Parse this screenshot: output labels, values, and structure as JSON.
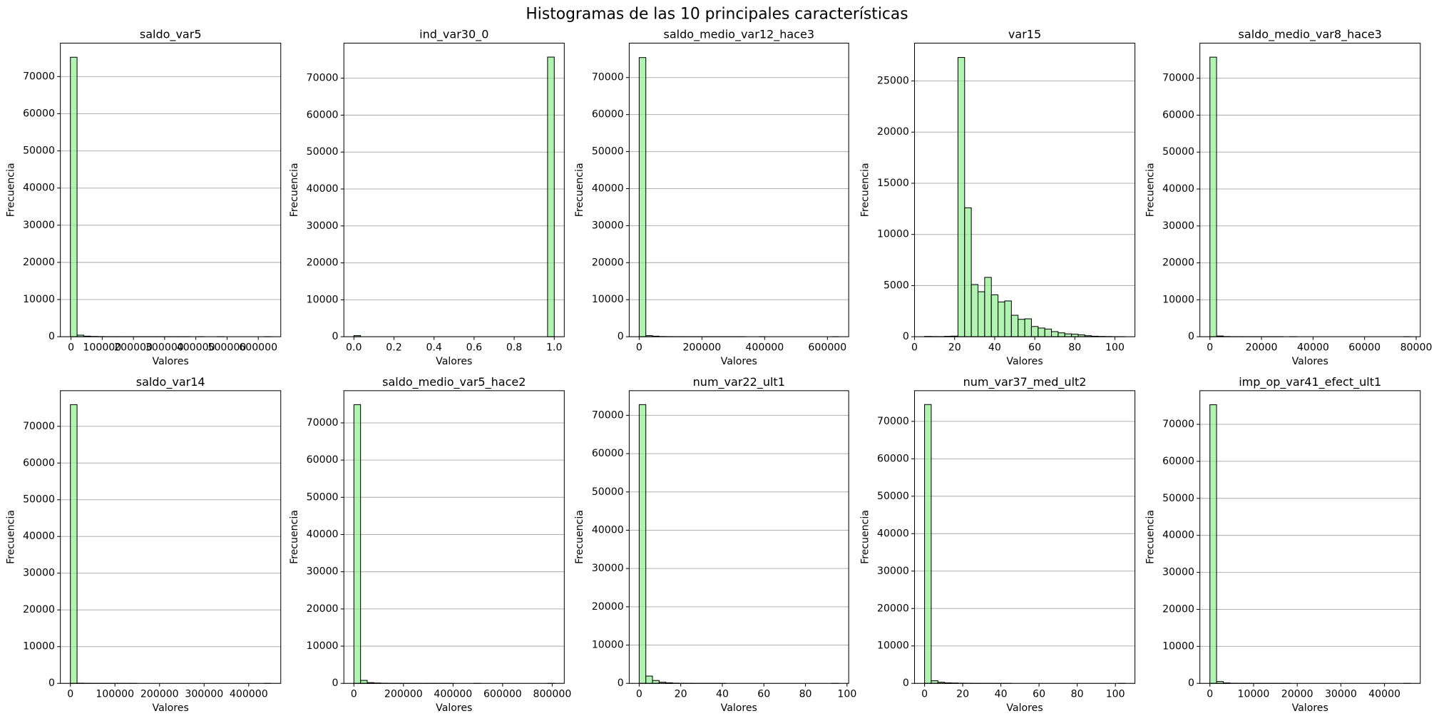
{
  "title": "Histogramas de las 10 principales características",
  "chart_data": [
    {
      "type": "histogram",
      "title": "saldo_var5",
      "xlabel": "Valores",
      "ylabel": "Frecuencia",
      "bins": [
        -2000,
        19400,
        40800,
        62200,
        83600,
        105000,
        126400,
        147800,
        169200,
        190600,
        212000,
        233400,
        254800,
        276200,
        297600,
        319000,
        340400,
        361800,
        383200,
        404600,
        426000,
        447400,
        468800,
        490200,
        511600,
        533000,
        554400,
        575800,
        597200,
        618600,
        640000
      ],
      "values": [
        75200,
        420,
        160,
        80,
        50,
        30,
        20,
        15,
        10,
        8,
        5,
        4,
        3,
        2,
        2,
        1,
        1,
        1,
        0,
        1,
        0,
        0,
        1,
        0,
        0,
        0,
        0,
        0,
        0,
        1
      ],
      "xlim": [
        -34100,
        672100
      ],
      "xticks": [
        0,
        100000,
        200000,
        300000,
        400000,
        500000,
        600000
      ],
      "ylim": [
        0,
        79000
      ],
      "yticks": [
        0,
        10000,
        20000,
        30000,
        40000,
        50000,
        60000,
        70000
      ],
      "color": "#90ee90",
      "alpha": 0.7,
      "edgecolor": "#000000",
      "grid": "y"
    },
    {
      "type": "histogram",
      "title": "ind_var30_0",
      "xlabel": "Valores",
      "ylabel": "Frecuencia",
      "bins": [
        0,
        0.0333,
        0.0667,
        0.1,
        0.1333,
        0.1667,
        0.2,
        0.2333,
        0.2667,
        0.3,
        0.3333,
        0.3667,
        0.4,
        0.4333,
        0.4667,
        0.5,
        0.5333,
        0.5667,
        0.6,
        0.6333,
        0.6667,
        0.7,
        0.7333,
        0.7667,
        0.8,
        0.8333,
        0.8667,
        0.9,
        0.9333,
        0.9667,
        1
      ],
      "values": [
        300,
        0,
        0,
        0,
        0,
        0,
        0,
        0,
        0,
        0,
        0,
        0,
        0,
        0,
        0,
        0,
        0,
        0,
        0,
        0,
        0,
        0,
        0,
        0,
        0,
        0,
        0,
        0,
        0,
        75720
      ],
      "xlim": [
        -0.05,
        1.05
      ],
      "xticks": [
        {
          "value": 0,
          "label": "0.0"
        },
        0.2,
        0.4,
        0.6,
        0.8,
        {
          "value": 1,
          "label": "1.0"
        }
      ],
      "ylim": [
        0,
        79500
      ],
      "yticks": [
        0,
        10000,
        20000,
        30000,
        40000,
        50000,
        60000,
        70000
      ],
      "color": "#90ee90",
      "alpha": 0.7,
      "edgecolor": "#000000",
      "grid": "y"
    },
    {
      "type": "histogram",
      "title": "saldo_medio_var12_hace3",
      "xlabel": "Valores",
      "ylabel": "Frecuencia",
      "bins": [
        0,
        21200,
        42400,
        63600,
        84800,
        106000,
        127200,
        148400,
        169600,
        190800,
        212000,
        233200,
        254400,
        275600,
        296800,
        318000,
        339200,
        360400,
        381600,
        402800,
        424000,
        445200,
        466400,
        487600,
        508800,
        530000,
        551200,
        572400,
        593600,
        614800,
        636000
      ],
      "values": [
        75400,
        300,
        150,
        60,
        40,
        20,
        15,
        10,
        5,
        5,
        3,
        2,
        2,
        1,
        1,
        1,
        0,
        0,
        1,
        0,
        0,
        0,
        0,
        0,
        0,
        0,
        0,
        0,
        0,
        1
      ],
      "xlim": [
        -31800,
        667800
      ],
      "xticks": [
        0,
        200000,
        400000,
        600000
      ],
      "ylim": [
        0,
        79300
      ],
      "yticks": [
        0,
        10000,
        20000,
        30000,
        40000,
        50000,
        60000,
        70000
      ],
      "color": "#90ee90",
      "alpha": 0.7,
      "edgecolor": "#000000",
      "grid": "y"
    },
    {
      "type": "histogram",
      "title": "var15",
      "xlabel": "Valores",
      "ylabel": "Frecuencia",
      "bins": [
        5,
        8.33,
        11.67,
        15,
        18.33,
        21.67,
        25,
        28.33,
        31.67,
        35,
        38.33,
        41.67,
        45,
        48.33,
        51.67,
        55,
        58.33,
        61.67,
        65,
        68.33,
        71.67,
        75,
        78.33,
        81.67,
        85,
        88.33,
        91.67,
        95,
        98.33,
        101.67,
        105
      ],
      "values": [
        30,
        20,
        15,
        40,
        60,
        27300,
        12600,
        5100,
        4400,
        5800,
        4100,
        3400,
        3500,
        2100,
        1700,
        1750,
        1000,
        850,
        750,
        500,
        380,
        280,
        250,
        180,
        100,
        50,
        30,
        20,
        10,
        5
      ],
      "xlim": [
        0,
        110
      ],
      "xticks": [
        0,
        20,
        40,
        60,
        80,
        100
      ],
      "ylim": [
        0,
        28700
      ],
      "yticks": [
        0,
        5000,
        10000,
        15000,
        20000,
        25000
      ],
      "color": "#90ee90",
      "alpha": 0.7,
      "edgecolor": "#000000",
      "grid": "y"
    },
    {
      "type": "histogram",
      "title": "saldo_medio_var8_hace3",
      "xlabel": "Valores",
      "ylabel": "Frecuencia",
      "bins": [
        0,
        2590,
        5180,
        7770,
        10360,
        12950,
        15540,
        18130,
        20720,
        23310,
        25900,
        28490,
        31080,
        33670,
        36260,
        38850,
        41440,
        44030,
        46620,
        49210,
        51800,
        54390,
        56980,
        59570,
        62160,
        64750,
        67340,
        69930,
        72520,
        75110,
        77700
      ],
      "values": [
        75700,
        200,
        60,
        25,
        15,
        8,
        5,
        3,
        2,
        1,
        1,
        0,
        1,
        0,
        0,
        0,
        0,
        0,
        0,
        0,
        0,
        0,
        0,
        0,
        0,
        0,
        0,
        0,
        0,
        1
      ],
      "xlim": [
        -3885,
        81585
      ],
      "xticks": [
        0,
        20000,
        40000,
        60000,
        80000
      ],
      "ylim": [
        0,
        79500
      ],
      "yticks": [
        0,
        10000,
        20000,
        30000,
        40000,
        50000,
        60000,
        70000
      ],
      "color": "#90ee90",
      "alpha": 0.7,
      "edgecolor": "#000000",
      "grid": "y"
    },
    {
      "type": "histogram",
      "title": "saldo_var14",
      "xlabel": "Valores",
      "ylabel": "Frecuencia",
      "bins": [
        0,
        14980,
        29960,
        44940,
        59920,
        74900,
        89880,
        104860,
        119840,
        134820,
        149800,
        164780,
        179760,
        194740,
        209720,
        224700,
        239680,
        254660,
        269640,
        284620,
        299600,
        314580,
        329560,
        344540,
        359520,
        374500,
        389480,
        404460,
        419440,
        434420,
        449400
      ],
      "values": [
        75900,
        60,
        20,
        10,
        8,
        5,
        3,
        2,
        1,
        1,
        0,
        0,
        0,
        0,
        0,
        0,
        0,
        0,
        0,
        0,
        0,
        0,
        0,
        0,
        0,
        0,
        0,
        0,
        0,
        1
      ],
      "xlim": [
        -22470,
        471870
      ],
      "xticks": [
        0,
        100000,
        200000,
        300000,
        400000
      ],
      "ylim": [
        0,
        79700
      ],
      "yticks": [
        0,
        10000,
        20000,
        30000,
        40000,
        50000,
        60000,
        70000
      ],
      "color": "#90ee90",
      "alpha": 0.7,
      "edgecolor": "#000000",
      "grid": "y"
    },
    {
      "type": "histogram",
      "title": "saldo_medio_var5_hace2",
      "xlabel": "Valores",
      "ylabel": "Frecuencia",
      "bins": [
        0,
        26940,
        53880,
        80820,
        107760,
        134700,
        161640,
        188580,
        215520,
        242460,
        269400,
        296340,
        323280,
        350220,
        377160,
        404100,
        431040,
        457980,
        484920,
        511860,
        538800,
        565740,
        592680,
        619620,
        646560,
        673500,
        700440,
        727380,
        754320,
        781260,
        808200
      ],
      "values": [
        74900,
        800,
        200,
        100,
        50,
        30,
        20,
        10,
        5,
        5,
        3,
        2,
        1,
        1,
        1,
        0,
        0,
        0,
        1,
        0,
        0,
        0,
        0,
        0,
        0,
        0,
        0,
        0,
        0,
        1
      ],
      "xlim": [
        -40410,
        848610
      ],
      "xticks": [
        0,
        200000,
        400000,
        600000,
        800000
      ],
      "ylim": [
        0,
        78650
      ],
      "yticks": [
        0,
        10000,
        20000,
        30000,
        40000,
        50000,
        60000,
        70000
      ],
      "color": "#90ee90",
      "alpha": 0.7,
      "edgecolor": "#000000",
      "grid": "y"
    },
    {
      "type": "histogram",
      "title": "num_var22_ult1",
      "xlabel": "Valores",
      "ylabel": "Frecuencia",
      "bins": [
        0,
        3.2,
        6.4,
        9.6,
        12.8,
        16,
        19.2,
        22.4,
        25.6,
        28.8,
        32,
        35.2,
        38.4,
        41.6,
        44.8,
        48,
        51.2,
        54.4,
        57.6,
        60.8,
        64,
        67.2,
        70.4,
        73.6,
        76.8,
        80,
        83.2,
        86.4,
        89.6,
        92.8,
        96
      ],
      "values": [
        72800,
        1900,
        750,
        300,
        150,
        60,
        30,
        15,
        5,
        3,
        2,
        1,
        1,
        0,
        0,
        0,
        0,
        0,
        0,
        0,
        0,
        0,
        0,
        0,
        0,
        0,
        0,
        0,
        0,
        1
      ],
      "xlim": [
        -4.8,
        100.8
      ],
      "xticks": [
        0,
        20,
        40,
        60,
        80,
        100
      ],
      "ylim": [
        0,
        76440
      ],
      "yticks": [
        0,
        10000,
        20000,
        30000,
        40000,
        50000,
        60000,
        70000
      ],
      "color": "#90ee90",
      "alpha": 0.7,
      "edgecolor": "#000000",
      "grid": "y"
    },
    {
      "type": "histogram",
      "title": "num_var37_med_ult2",
      "xlabel": "Valores",
      "ylabel": "Frecuencia",
      "bins": [
        0,
        3.5,
        7,
        10.5,
        14,
        17.5,
        21,
        24.5,
        28,
        31.5,
        35,
        38.5,
        42,
        45.5,
        49,
        52.5,
        56,
        59.5,
        63,
        66.5,
        70,
        73.5,
        77,
        80.5,
        84,
        87.5,
        91,
        94.5,
        98,
        101.5,
        105
      ],
      "values": [
        74500,
        700,
        300,
        150,
        100,
        50,
        30,
        10,
        5,
        3,
        2,
        1,
        1,
        0,
        0,
        0,
        0,
        0,
        0,
        0,
        0,
        0,
        0,
        0,
        0,
        0,
        0,
        0,
        0,
        1
      ],
      "xlim": [
        -5.25,
        110.25
      ],
      "xticks": [
        0,
        20,
        40,
        60,
        80,
        100
      ],
      "ylim": [
        0,
        78200
      ],
      "yticks": [
        0,
        10000,
        20000,
        30000,
        40000,
        50000,
        60000,
        70000
      ],
      "color": "#90ee90",
      "alpha": 0.7,
      "edgecolor": "#000000",
      "grid": "y"
    },
    {
      "type": "histogram",
      "title": "imp_op_var41_efect_ult1",
      "xlabel": "Valores",
      "ylabel": "Frecuencia",
      "bins": [
        0,
        1530,
        3060,
        4590,
        6120,
        7650,
        9180,
        10710,
        12240,
        13770,
        15300,
        16830,
        18360,
        19890,
        21420,
        22950,
        24480,
        26010,
        27540,
        29070,
        30600,
        32130,
        33660,
        35190,
        36720,
        38250,
        39780,
        41310,
        42840,
        44370,
        45900
      ],
      "values": [
        75300,
        500,
        120,
        40,
        20,
        15,
        8,
        5,
        3,
        2,
        1,
        1,
        0,
        0,
        0,
        0,
        0,
        0,
        0,
        0,
        0,
        0,
        0,
        0,
        0,
        0,
        0,
        0,
        0,
        1
      ],
      "xlim": [
        -2295,
        48195
      ],
      "xticks": [
        0,
        10000,
        20000,
        30000,
        40000
      ],
      "ylim": [
        0,
        79100
      ],
      "yticks": [
        0,
        10000,
        20000,
        30000,
        40000,
        50000,
        60000,
        70000
      ],
      "color": "#90ee90",
      "alpha": 0.7,
      "edgecolor": "#000000",
      "grid": "y"
    }
  ]
}
